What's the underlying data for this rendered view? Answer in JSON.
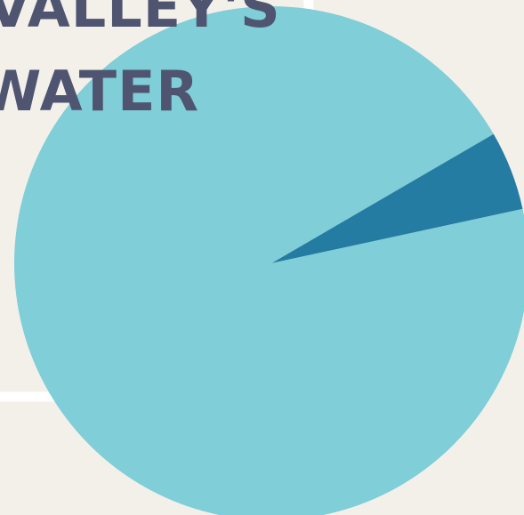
{
  "title_lines": [
    "VALLEY'S",
    "WATER"
  ],
  "chart_data": {
    "type": "pie",
    "values": [
      5,
      95
    ],
    "colors": [
      "#257ca3",
      "#7fced8"
    ]
  }
}
